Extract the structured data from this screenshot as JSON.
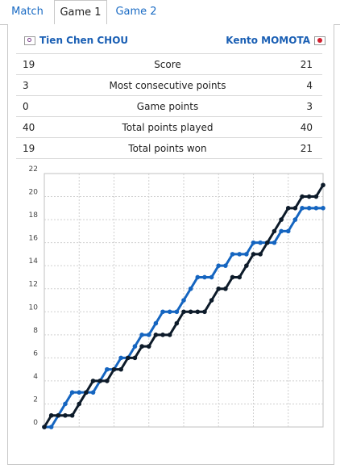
{
  "tabs": [
    {
      "label": "Match",
      "active": false
    },
    {
      "label": "Game 1",
      "active": true
    },
    {
      "label": "Game 2",
      "active": false
    }
  ],
  "players": {
    "left": {
      "name": "Tien Chen CHOU",
      "flag": "tpe-flag-icon"
    },
    "right": {
      "name": "Kento MOMOTA",
      "flag": "japan-flag-icon"
    }
  },
  "stats": [
    {
      "left": "19",
      "label": "Score",
      "right": "21"
    },
    {
      "left": "3",
      "label": "Most consecutive points",
      "right": "4"
    },
    {
      "left": "0",
      "label": "Game points",
      "right": "3"
    },
    {
      "left": "40",
      "label": "Total points played",
      "right": "40"
    },
    {
      "left": "19",
      "label": "Total points won",
      "right": "21"
    }
  ],
  "colors": {
    "accent": "#1a6bc4",
    "chou": "#1565c0",
    "momota": "#0d1b2a"
  },
  "chart_data": {
    "type": "line",
    "x": [
      0,
      1,
      2,
      3,
      4,
      5,
      6,
      7,
      8,
      9,
      10,
      11,
      12,
      13,
      14,
      15,
      16,
      17,
      18,
      19,
      20,
      21,
      22,
      23,
      24,
      25,
      26,
      27,
      28,
      29,
      30,
      31,
      32,
      33,
      34,
      35,
      36,
      37,
      38,
      39,
      40
    ],
    "ylim": [
      0,
      22
    ],
    "yticks": [
      0,
      2,
      4,
      6,
      8,
      10,
      12,
      14,
      16,
      18,
      20,
      22
    ],
    "grid": true,
    "series": [
      {
        "name": "Tien Chen CHOU",
        "color": "#1565c0",
        "values": [
          0,
          0,
          1,
          2,
          3,
          3,
          3,
          3,
          4,
          5,
          5,
          6,
          6,
          7,
          8,
          8,
          9,
          10,
          10,
          10,
          11,
          12,
          13,
          13,
          13,
          14,
          14,
          15,
          15,
          15,
          16,
          16,
          16,
          16,
          17,
          17,
          18,
          19,
          19,
          19,
          19
        ]
      },
      {
        "name": "Kento MOMOTA",
        "color": "#0d1b2a",
        "values": [
          0,
          1,
          1,
          1,
          1,
          2,
          3,
          4,
          4,
          4,
          5,
          5,
          6,
          6,
          7,
          7,
          8,
          8,
          8,
          9,
          10,
          10,
          10,
          10,
          11,
          12,
          12,
          13,
          13,
          14,
          15,
          15,
          16,
          17,
          18,
          19,
          19,
          20,
          20,
          20,
          21
        ]
      }
    ]
  }
}
